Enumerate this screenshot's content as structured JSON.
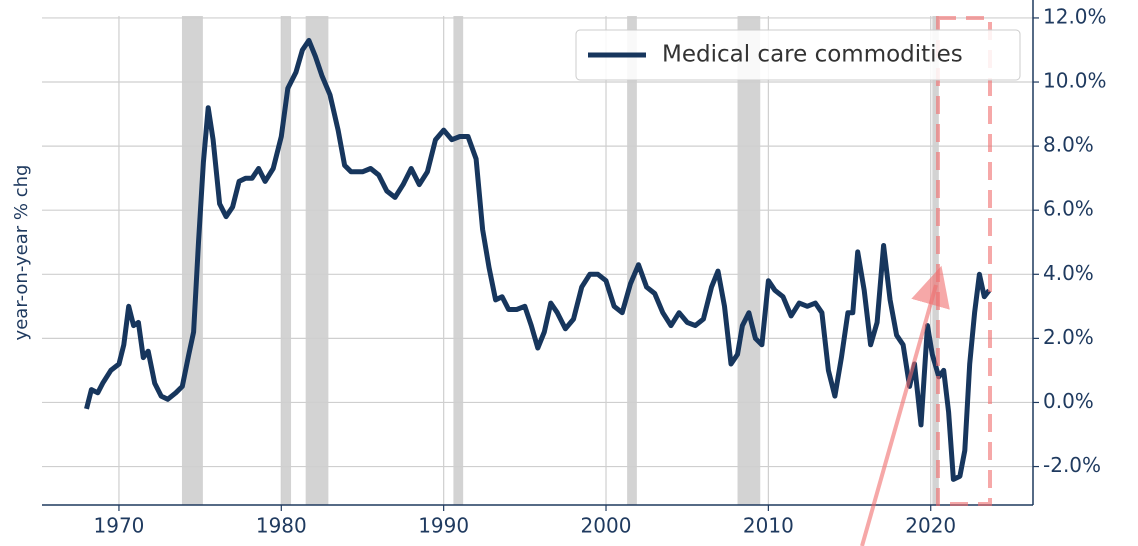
{
  "chart_data": {
    "type": "line",
    "ylabel": "year-on-year % chg",
    "legend": "upper right",
    "grid": true,
    "xlim": [
      1965.26,
      2026.3
    ],
    "ylim": [
      -3.2,
      12.56
    ],
    "xticks": [
      1970,
      1980,
      1990,
      2000,
      2010,
      2020
    ],
    "yticks": [
      {
        "value": -2,
        "label": "-2.0%"
      },
      {
        "value": 0,
        "label": "0.0%"
      },
      {
        "value": 2,
        "label": "2.0%"
      },
      {
        "value": 4,
        "label": "4.0%"
      },
      {
        "value": 6,
        "label": "6.0%"
      },
      {
        "value": 8,
        "label": "8.0%"
      },
      {
        "value": 10,
        "label": "10.0%"
      },
      {
        "value": 12,
        "label": "12.0%"
      }
    ],
    "shaded_periods": [
      [
        1973.88,
        1975.17
      ],
      [
        1980.0,
        1980.6
      ],
      [
        1981.5,
        1982.9
      ],
      [
        1990.6,
        1991.2
      ],
      [
        2001.3,
        2001.9
      ],
      [
        2008.1,
        2009.5
      ],
      [
        2020.1,
        2020.5
      ]
    ],
    "shade_color": "#d3d3d3",
    "x": [
      1968.0,
      1968.3,
      1968.7,
      1969.0,
      1969.5,
      1970.0,
      1970.3,
      1970.6,
      1970.9,
      1971.2,
      1971.5,
      1971.8,
      1972.2,
      1972.6,
      1973.0,
      1973.5,
      1973.9,
      1974.3,
      1974.6,
      1974.9,
      1975.2,
      1975.5,
      1975.8,
      1976.2,
      1976.6,
      1977.0,
      1977.4,
      1977.8,
      1978.2,
      1978.6,
      1979.0,
      1979.5,
      1980.0,
      1980.4,
      1980.9,
      1981.3,
      1981.7,
      1982.1,
      1982.5,
      1983.0,
      1983.5,
      1983.9,
      1984.3,
      1985.0,
      1985.5,
      1986.0,
      1986.5,
      1987.0,
      1987.5,
      1988.0,
      1988.5,
      1989.0,
      1989.5,
      1990.0,
      1990.5,
      1991.0,
      1991.5,
      1992.0,
      1992.4,
      1992.8,
      1993.2,
      1993.6,
      1994.0,
      1994.5,
      1995.0,
      1995.4,
      1995.8,
      1996.2,
      1996.6,
      1997.0,
      1997.5,
      1998.0,
      1998.5,
      1999.0,
      1999.5,
      2000.0,
      2000.5,
      2001.0,
      2001.5,
      2002.0,
      2002.5,
      2003.0,
      2003.5,
      2004.0,
      2004.5,
      2005.0,
      2005.5,
      2006.0,
      2006.5,
      2006.9,
      2007.3,
      2007.7,
      2008.1,
      2008.4,
      2008.8,
      2009.2,
      2009.6,
      2010.0,
      2010.4,
      2010.9,
      2011.4,
      2011.9,
      2012.4,
      2012.9,
      2013.3,
      2013.7,
      2014.1,
      2014.5,
      2014.9,
      2015.2,
      2015.5,
      2015.9,
      2016.3,
      2016.7,
      2017.1,
      2017.5,
      2017.9,
      2018.3,
      2018.7,
      2019.0,
      2019.4,
      2019.8,
      2020.1,
      2020.5,
      2020.8,
      2021.1,
      2021.4,
      2021.8,
      2022.1,
      2022.4,
      2022.7,
      2023.0,
      2023.3,
      2023.6
    ],
    "series": [
      {
        "name": "Medical care commodities",
        "color": "#17365d",
        "values": [
          -0.2,
          0.4,
          0.3,
          0.6,
          1.0,
          1.2,
          1.8,
          3.0,
          2.4,
          2.5,
          1.4,
          1.6,
          0.6,
          0.2,
          0.1,
          0.3,
          0.5,
          1.5,
          2.2,
          5.0,
          7.5,
          9.2,
          8.2,
          6.2,
          5.8,
          6.1,
          6.9,
          7.0,
          7.0,
          7.3,
          6.9,
          7.3,
          8.3,
          9.8,
          10.3,
          11.0,
          11.3,
          10.8,
          10.2,
          9.6,
          8.5,
          7.4,
          7.2,
          7.2,
          7.3,
          7.1,
          6.6,
          6.4,
          6.8,
          7.3,
          6.8,
          7.2,
          8.2,
          8.5,
          8.2,
          8.3,
          8.3,
          7.6,
          5.4,
          4.2,
          3.2,
          3.3,
          2.9,
          2.9,
          3.0,
          2.4,
          1.7,
          2.2,
          3.1,
          2.8,
          2.3,
          2.6,
          3.6,
          4.0,
          4.0,
          3.8,
          3.0,
          2.8,
          3.7,
          4.3,
          3.6,
          3.4,
          2.8,
          2.4,
          2.8,
          2.5,
          2.4,
          2.6,
          3.6,
          4.1,
          3.0,
          1.2,
          1.5,
          2.4,
          2.8,
          2.0,
          1.8,
          3.8,
          3.5,
          3.3,
          2.7,
          3.1,
          3.0,
          3.1,
          2.8,
          1.0,
          0.2,
          1.4,
          2.8,
          2.8,
          4.7,
          3.5,
          1.8,
          2.5,
          4.9,
          3.2,
          2.1,
          1.8,
          0.5,
          1.2,
          -0.7,
          2.4,
          1.5,
          0.8,
          1.0,
          -0.3,
          -2.4,
          -2.3,
          -1.5,
          1.2,
          2.8,
          4.0,
          3.3,
          3.5
        ]
      }
    ]
  }
}
